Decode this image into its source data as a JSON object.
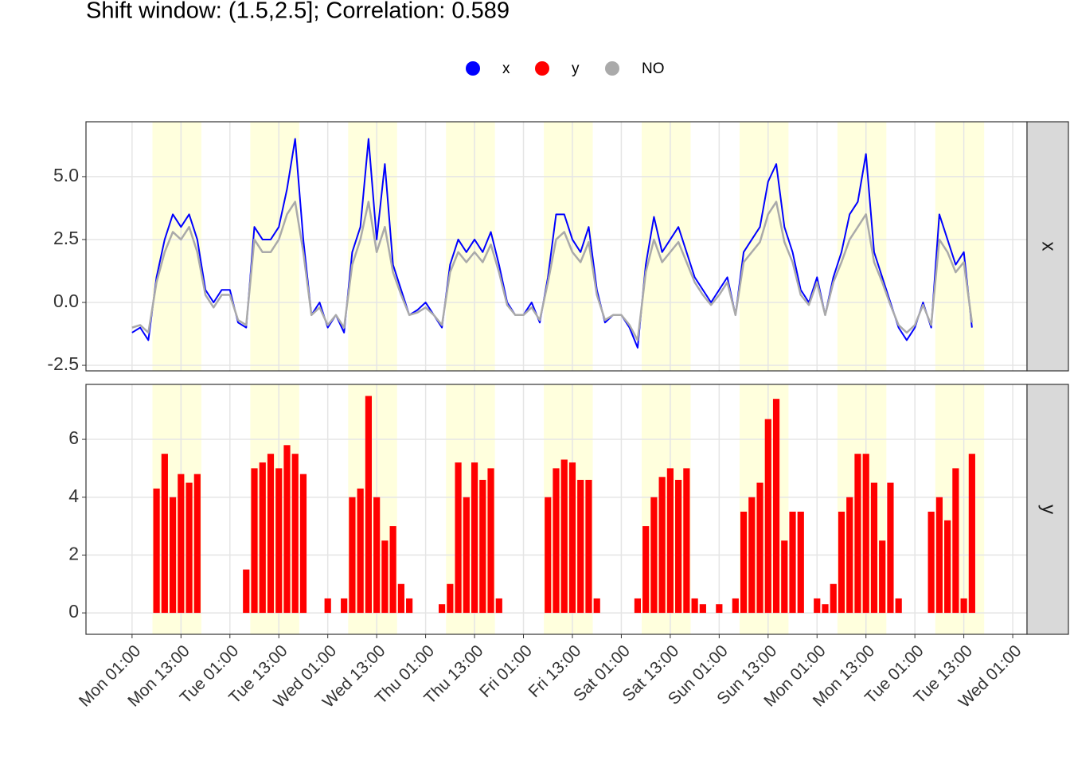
{
  "chart_data": {
    "type": "faceted-timeseries",
    "title": "Shift window: (1.5,2.5]; Correlation: 0.589",
    "x": [
      0,
      2,
      4,
      6,
      8,
      10,
      12,
      14,
      16,
      18,
      20,
      22,
      24,
      26,
      28,
      30,
      32,
      34,
      36,
      38,
      40,
      42,
      44,
      46,
      48,
      50,
      52,
      54,
      56,
      58,
      60,
      62,
      64,
      66,
      68,
      70,
      72,
      74,
      76,
      78,
      80,
      82,
      84,
      86,
      88,
      90,
      92,
      94,
      96,
      98,
      100,
      102,
      104,
      106,
      108,
      110,
      112,
      114,
      116,
      118,
      120,
      122,
      124,
      126,
      128,
      130,
      132,
      134,
      136,
      138,
      140,
      142,
      144,
      146,
      148,
      150,
      152,
      154,
      156,
      158,
      160,
      162,
      164,
      166,
      168,
      170,
      172,
      174,
      176,
      178,
      180,
      182,
      184,
      186,
      188,
      190,
      192,
      194,
      196,
      198,
      200,
      202,
      204,
      206
    ],
    "xlim": [
      -11.3,
      219.5
    ],
    "xticks": [
      {
        "value": 0,
        "label": "Mon 01:00"
      },
      {
        "value": 12,
        "label": "Mon 13:00"
      },
      {
        "value": 24,
        "label": "Tue 01:00"
      },
      {
        "value": 36,
        "label": "Tue 13:00"
      },
      {
        "value": 48,
        "label": "Wed 01:00"
      },
      {
        "value": 60,
        "label": "Wed 13:00"
      },
      {
        "value": 72,
        "label": "Thu 01:00"
      },
      {
        "value": 84,
        "label": "Thu 13:00"
      },
      {
        "value": 96,
        "label": "Fri 01:00"
      },
      {
        "value": 108,
        "label": "Fri 13:00"
      },
      {
        "value": 120,
        "label": "Sat 01:00"
      },
      {
        "value": 132,
        "label": "Sat 13:00"
      },
      {
        "value": 144,
        "label": "Sun 01:00"
      },
      {
        "value": 156,
        "label": "Sun 13:00"
      },
      {
        "value": 168,
        "label": "Mon 01:00"
      },
      {
        "value": 180,
        "label": "Mon 13:00"
      },
      {
        "value": 192,
        "label": "Tue 01:00"
      },
      {
        "value": 204,
        "label": "Tue 13:00"
      },
      {
        "value": 216,
        "label": "Wed 01:00"
      }
    ],
    "shading": [
      [
        5,
        17
      ],
      [
        29,
        41
      ],
      [
        53,
        65
      ],
      [
        77,
        89
      ],
      [
        101,
        113
      ],
      [
        125,
        137
      ],
      [
        149,
        161
      ],
      [
        173,
        185
      ],
      [
        197,
        209
      ]
    ],
    "shading_color": "#ffffdd",
    "grid": true,
    "legend_position": "top",
    "panels": [
      {
        "type": "line",
        "strip": "x",
        "ylim": [
          -2.72,
          7.18
        ],
        "yticks": [
          -2.5,
          {
            "value": 0,
            "label": "0.0"
          },
          2.5,
          {
            "value": 5,
            "label": "5.0"
          }
        ],
        "series": [
          {
            "name": "x",
            "color": "#0000ff",
            "values": [
              -1.2,
              -1.0,
              -1.5,
              1.0,
              2.5,
              3.5,
              3.0,
              3.5,
              2.5,
              0.5,
              0.0,
              0.5,
              0.5,
              -0.8,
              -1.0,
              3.0,
              2.5,
              2.5,
              3.0,
              4.5,
              6.5,
              2.5,
              -0.5,
              0.0,
              -1.0,
              -0.5,
              -1.2,
              2.0,
              3.0,
              6.5,
              2.5,
              5.5,
              1.5,
              0.5,
              -0.5,
              -0.3,
              0.0,
              -0.5,
              -1.0,
              1.5,
              2.5,
              2.0,
              2.5,
              2.0,
              2.8,
              1.5,
              0.0,
              -0.5,
              -0.5,
              0.0,
              -0.8,
              1.0,
              3.5,
              3.5,
              2.5,
              2.0,
              3.0,
              0.5,
              -0.8,
              -0.5,
              -0.5,
              -1.0,
              -1.8,
              1.5,
              3.4,
              2.0,
              2.5,
              3.0,
              2.0,
              1.0,
              0.5,
              0.0,
              0.5,
              1.0,
              -0.5,
              2.0,
              2.5,
              3.0,
              4.8,
              5.5,
              3.0,
              2.0,
              0.5,
              0.0,
              1.0,
              -0.5,
              1.0,
              2.0,
              3.5,
              4.0,
              5.9,
              2.0,
              1.0,
              0.0,
              -1.0,
              -1.5,
              -1.0,
              0.0,
              -1.0,
              3.5,
              2.5,
              1.5,
              2.0,
              -1.0
            ]
          },
          {
            "name": "NO",
            "color": "#aaaaaa",
            "values": [
              -1.0,
              -0.9,
              -1.2,
              0.8,
              2.0,
              2.8,
              2.5,
              3.0,
              2.0,
              0.3,
              -0.2,
              0.3,
              0.3,
              -0.7,
              -0.9,
              2.5,
              2.0,
              2.0,
              2.5,
              3.5,
              4.0,
              2.0,
              -0.5,
              -0.2,
              -0.9,
              -0.5,
              -1.0,
              1.5,
              2.5,
              4.0,
              2.0,
              3.0,
              1.2,
              0.3,
              -0.5,
              -0.4,
              -0.2,
              -0.5,
              -0.9,
              1.2,
              2.0,
              1.6,
              2.0,
              1.6,
              2.3,
              1.2,
              -0.1,
              -0.5,
              -0.5,
              -0.2,
              -0.7,
              0.8,
              2.5,
              2.8,
              2.0,
              1.6,
              2.4,
              0.3,
              -0.7,
              -0.5,
              -0.5,
              -0.9,
              -1.5,
              1.2,
              2.5,
              1.6,
              2.0,
              2.4,
              1.6,
              0.8,
              0.3,
              -0.1,
              0.3,
              0.8,
              -0.5,
              1.6,
              2.0,
              2.4,
              3.5,
              4.0,
              2.4,
              1.6,
              0.3,
              -0.1,
              0.8,
              -0.5,
              0.8,
              1.6,
              2.5,
              3.0,
              3.5,
              1.6,
              0.8,
              -0.1,
              -0.9,
              -1.2,
              -0.9,
              -0.1,
              -0.9,
              2.5,
              2.0,
              1.2,
              1.6,
              -0.8
            ]
          }
        ]
      },
      {
        "type": "bar",
        "strip": "y",
        "ylim": [
          -0.74,
          7.9
        ],
        "yticks": [
          0,
          2,
          4,
          6
        ],
        "series": [
          {
            "name": "y",
            "color": "#ff0000",
            "values": [
              0,
              0,
              0,
              4.3,
              5.5,
              4.0,
              4.8,
              4.5,
              4.8,
              0,
              0,
              0,
              0,
              0,
              1.5,
              5.0,
              5.2,
              5.5,
              5.0,
              5.8,
              5.5,
              4.8,
              0,
              0,
              0.5,
              0,
              0.5,
              4.0,
              4.3,
              7.5,
              4.0,
              2.5,
              3.0,
              1.0,
              0.5,
              0,
              0,
              0,
              0.3,
              1.0,
              5.2,
              4.0,
              5.2,
              4.6,
              5.0,
              0.5,
              0,
              0,
              0,
              0,
              0,
              4.0,
              5.0,
              5.3,
              5.2,
              4.6,
              4.6,
              0.5,
              0,
              0,
              0,
              0,
              0.5,
              3.0,
              4.0,
              4.7,
              5.0,
              4.6,
              5.0,
              0.5,
              0.3,
              0,
              0.3,
              0,
              0.5,
              3.5,
              4.0,
              4.5,
              6.7,
              7.4,
              2.5,
              3.5,
              3.5,
              0,
              0.5,
              0.3,
              1.0,
              3.5,
              4.0,
              5.5,
              5.5,
              4.5,
              2.5,
              4.5,
              0.5,
              0,
              0,
              0,
              3.5,
              4.0,
              3.2,
              5.0,
              0.5,
              5.5
            ]
          }
        ]
      }
    ]
  }
}
